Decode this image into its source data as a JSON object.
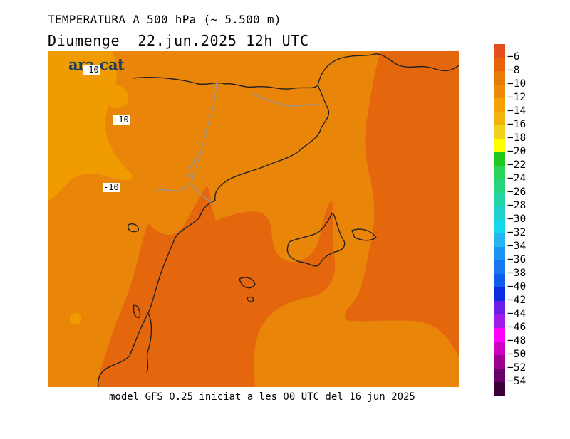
{
  "header": {
    "line1": "TEMPERATURA A 500 hPa (~ 5.500 m)",
    "line2": "Diumenge  22.jun.2025 12h UTC"
  },
  "footer": "model GFS 0.25 iniciat a les 00 UTC del 16 jun 2025",
  "logo": "ara.cat",
  "contour_labels": [
    "-10",
    "-10",
    "-10"
  ],
  "legend": {
    "labels": [
      "−6",
      "−8",
      "−10",
      "−12",
      "−14",
      "−16",
      "−18",
      "−20",
      "−22",
      "−24",
      "−26",
      "−28",
      "−30",
      "−32",
      "−34",
      "−36",
      "−38",
      "−40",
      "−42",
      "−44",
      "−46",
      "−48",
      "−50",
      "−52",
      "−54"
    ],
    "colors": [
      "#e34f1b",
      "#e8640a",
      "#e67b06",
      "#ec8a04",
      "#f6a200",
      "#f2b20a",
      "#f2d31a",
      "#ffff00",
      "#22c81e",
      "#2bd35b",
      "#2ad47e",
      "#24d4a6",
      "#1fd0cf",
      "#16d8ec",
      "#28b4f0",
      "#1a94f0",
      "#1777ee",
      "#0e5ded",
      "#0b2ce0",
      "#6a1ee8",
      "#a219e8",
      "#ff00ff",
      "#d000c0",
      "#9c0092",
      "#6a006a",
      "#3a003a"
    ]
  },
  "map_colors": {
    "band_minus_10_to_12": "#f09b00",
    "band_minus_8_to_10": "#e9860a",
    "band_minus_6_to_8": "#e4670d",
    "coast": "#222222",
    "border": "#999999"
  }
}
